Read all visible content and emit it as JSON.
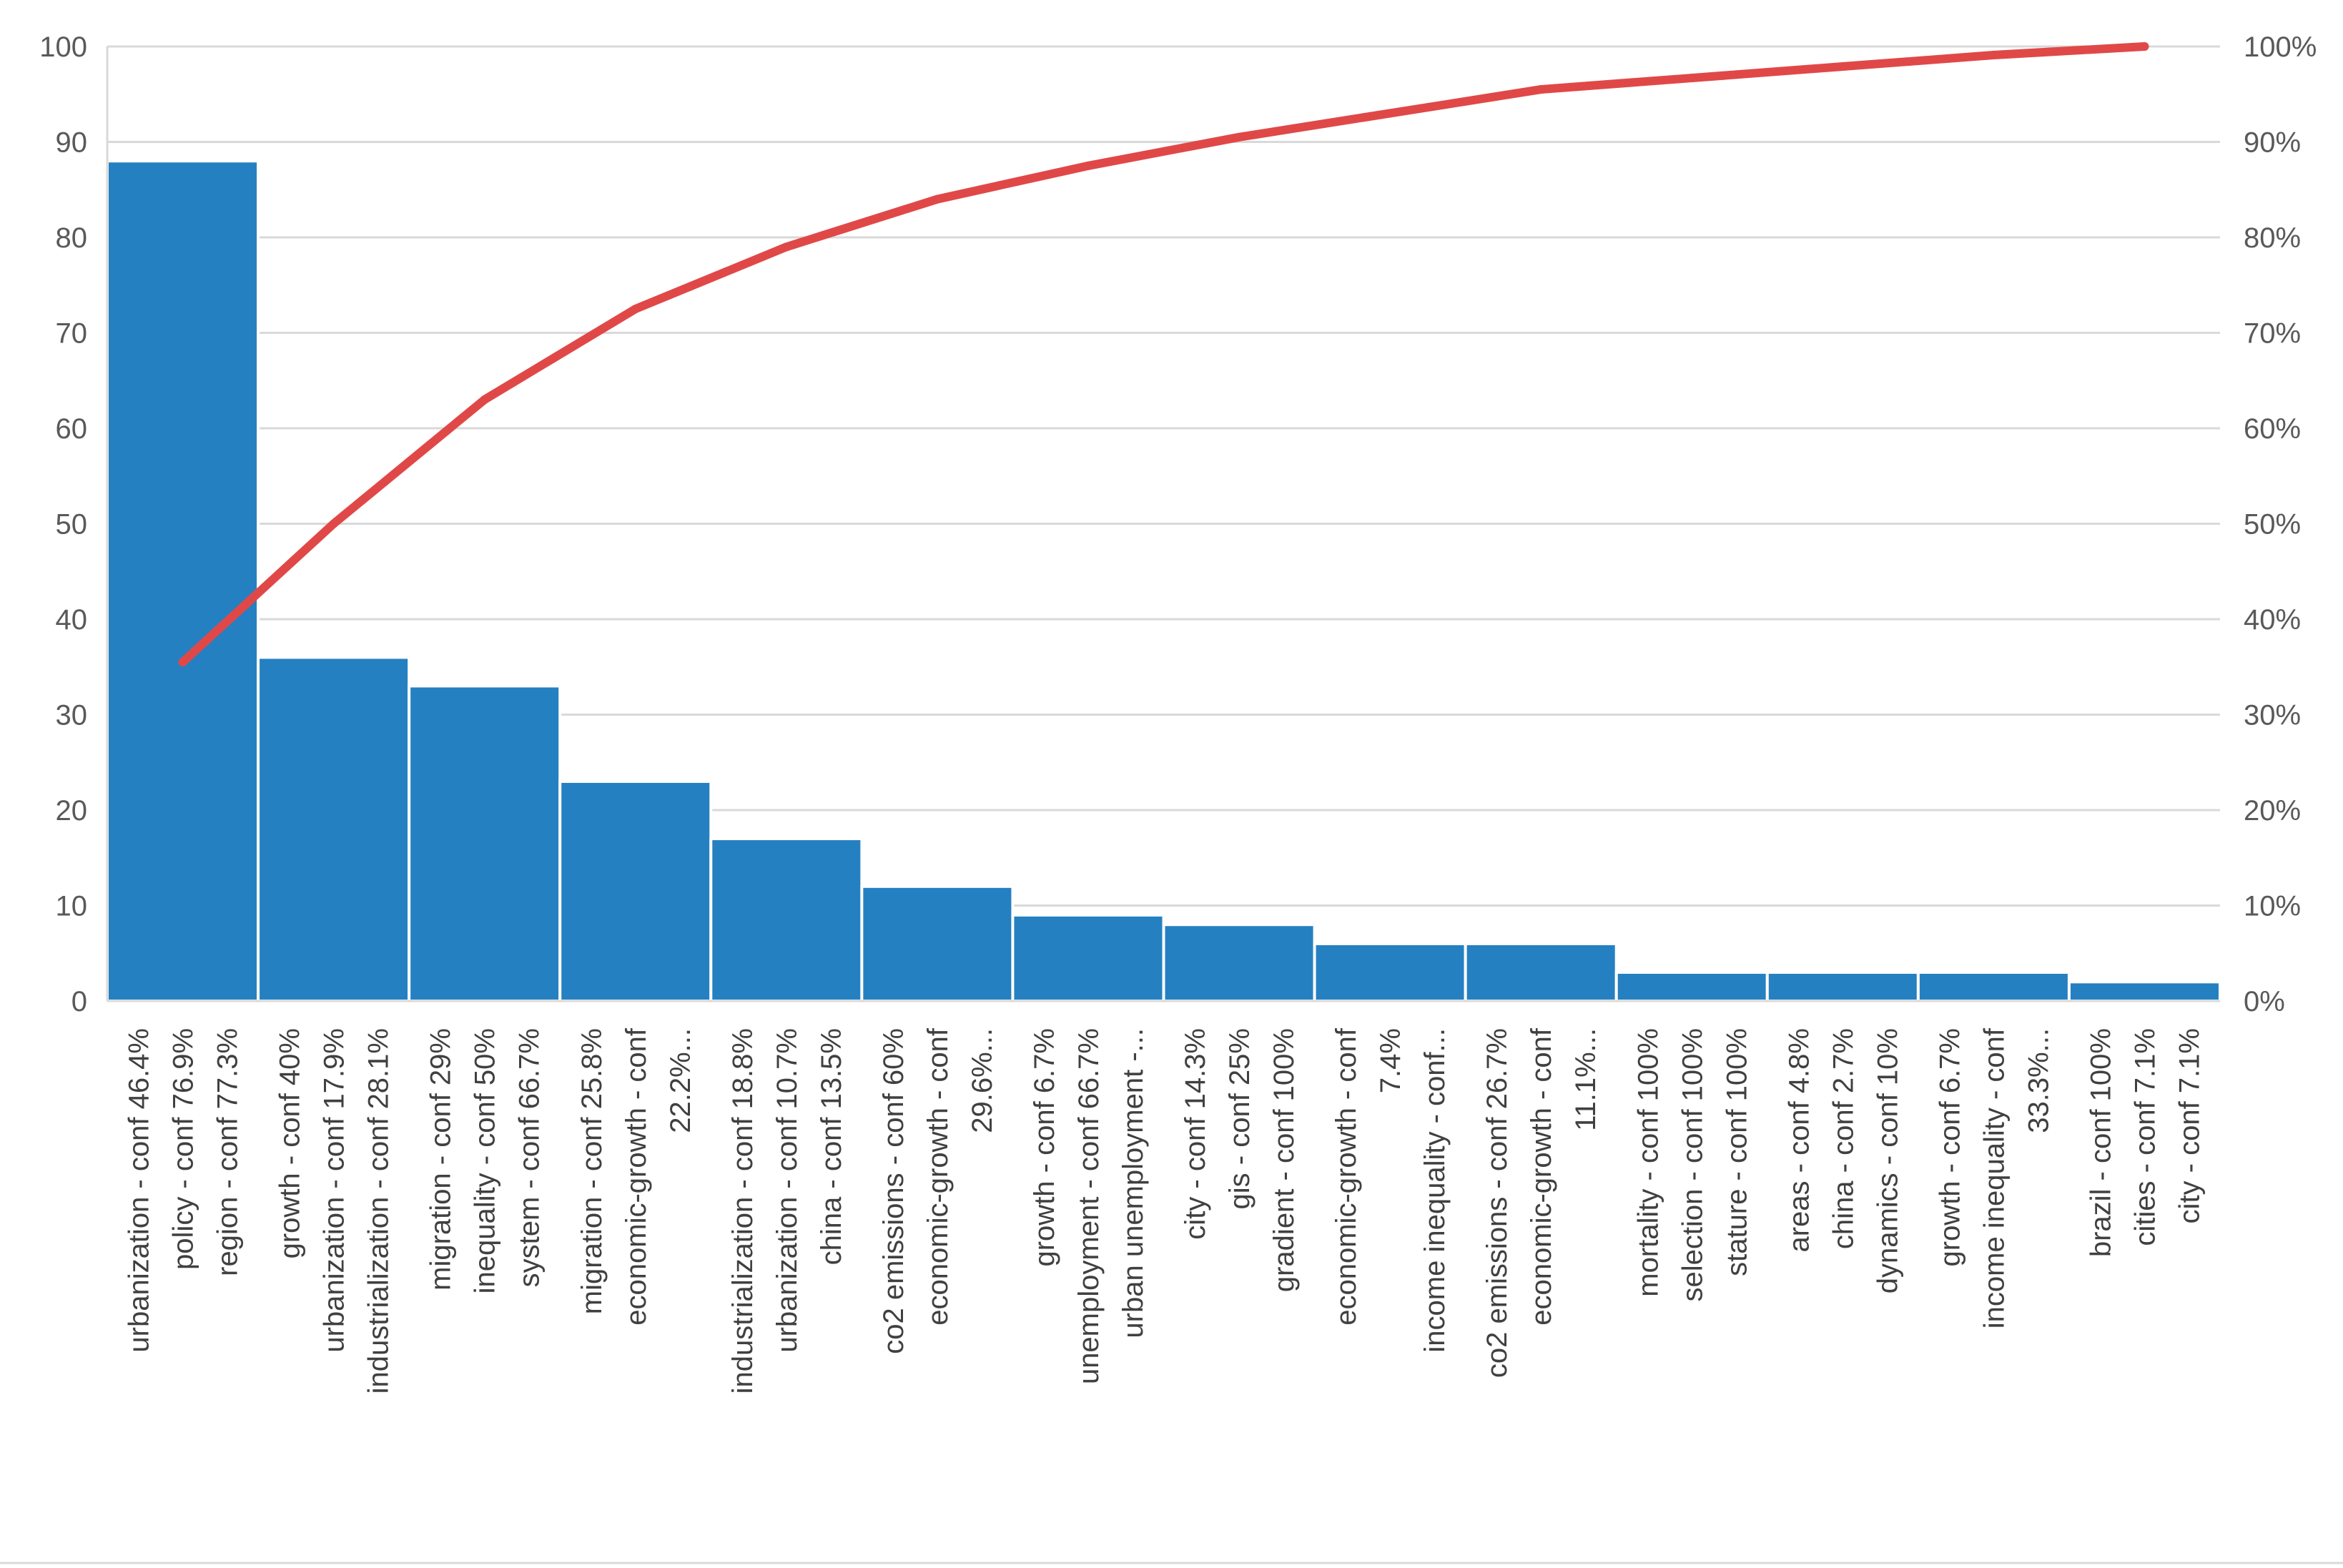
{
  "chart_data": {
    "type": "bar",
    "title": "",
    "xlabel": "",
    "ylabel": "",
    "ylim": [
      0,
      100
    ],
    "y_ticks": [
      "0",
      "10",
      "20",
      "30",
      "40",
      "50",
      "60",
      "70",
      "80",
      "90",
      "100"
    ],
    "y2lim": [
      0,
      100
    ],
    "y2_ticks": [
      "0%",
      "10%",
      "20%",
      "30%",
      "40%",
      "50%",
      "60%",
      "70%",
      "80%",
      "90%",
      "100%"
    ],
    "grid": true,
    "legend": "none",
    "categories": [
      [
        "urbanization - conf 46.4%",
        "policy - conf 76.9%",
        "region - conf 77.3%"
      ],
      [
        "growth - conf 40%",
        "urbanization - conf 17.9%",
        "industrialization - conf 28.1%"
      ],
      [
        "migration - conf 29%",
        "inequality - conf 50%",
        "system - conf 66.7%"
      ],
      [
        "migration - conf 25.8%",
        "economic-growth - conf",
        "22.2%..."
      ],
      [
        "industrialization - conf 18.8%",
        "urbanization - conf 10.7%",
        "china - conf 13.5%"
      ],
      [
        "co2 emissions - conf 60%",
        "economic-growth - conf",
        "29.6%..."
      ],
      [
        "growth - conf 6.7%",
        "unemployment - conf 66.7%",
        "urban unemployment -..."
      ],
      [
        "city - conf 14.3%",
        "gis - conf 25%",
        "gradient - conf 100%"
      ],
      [
        "economic-growth - conf",
        "7.4%",
        "income inequality - conf..."
      ],
      [
        "co2 emissions - conf 26.7%",
        "economic-growth - conf",
        "11.1%..."
      ],
      [
        "mortality - conf 100%",
        "selection - conf 100%",
        "stature - conf 100%"
      ],
      [
        "areas - conf 4.8%",
        "china - conf 2.7%",
        "dynamics - conf 10%"
      ],
      [
        "growth - conf 6.7%",
        "income inequality - conf",
        "33.3%..."
      ],
      [
        "brazil - conf 100%",
        "cities - conf 7.1%",
        "city - conf 7.1%"
      ]
    ],
    "series": [
      {
        "type": "bar",
        "axis": "left",
        "values": [
          88,
          36,
          33,
          23,
          17,
          12,
          9,
          8,
          6,
          6,
          3,
          3,
          3,
          2
        ],
        "color": "#2580c1"
      },
      {
        "type": "line",
        "axis": "right",
        "values": [
          35.5,
          50,
          63,
          72.5,
          79,
          84,
          87.5,
          90.5,
          93,
          95.5,
          96.7,
          97.9,
          99.1,
          100
        ],
        "color": "#e04848"
      }
    ]
  }
}
